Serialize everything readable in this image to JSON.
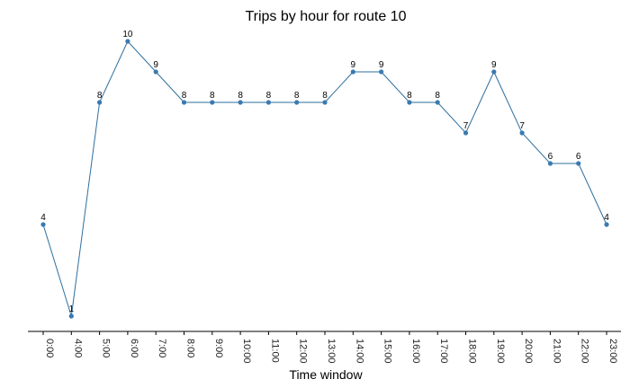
{
  "chart_data": {
    "type": "line",
    "title": "Trips by hour for route 10",
    "xlabel": "Time window",
    "ylabel": "",
    "categories": [
      "0:00",
      "4:00",
      "5:00",
      "6:00",
      "7:00",
      "8:00",
      "9:00",
      "10:00",
      "11:00",
      "12:00",
      "13:00",
      "14:00",
      "15:00",
      "16:00",
      "17:00",
      "18:00",
      "19:00",
      "20:00",
      "21:00",
      "22:00",
      "23:00"
    ],
    "series": [
      {
        "values": [
          4,
          1,
          8,
          10,
          9,
          8,
          8,
          8,
          8,
          8,
          8,
          9,
          9,
          8,
          8,
          7,
          9,
          7,
          6,
          6,
          4
        ]
      }
    ],
    "ylim": [
      0,
      10
    ],
    "grid": false,
    "y_axis_visible": false,
    "colors": {
      "line": "#2e6f9e",
      "marker": "#3a7ab0",
      "axis": "#000000"
    }
  }
}
